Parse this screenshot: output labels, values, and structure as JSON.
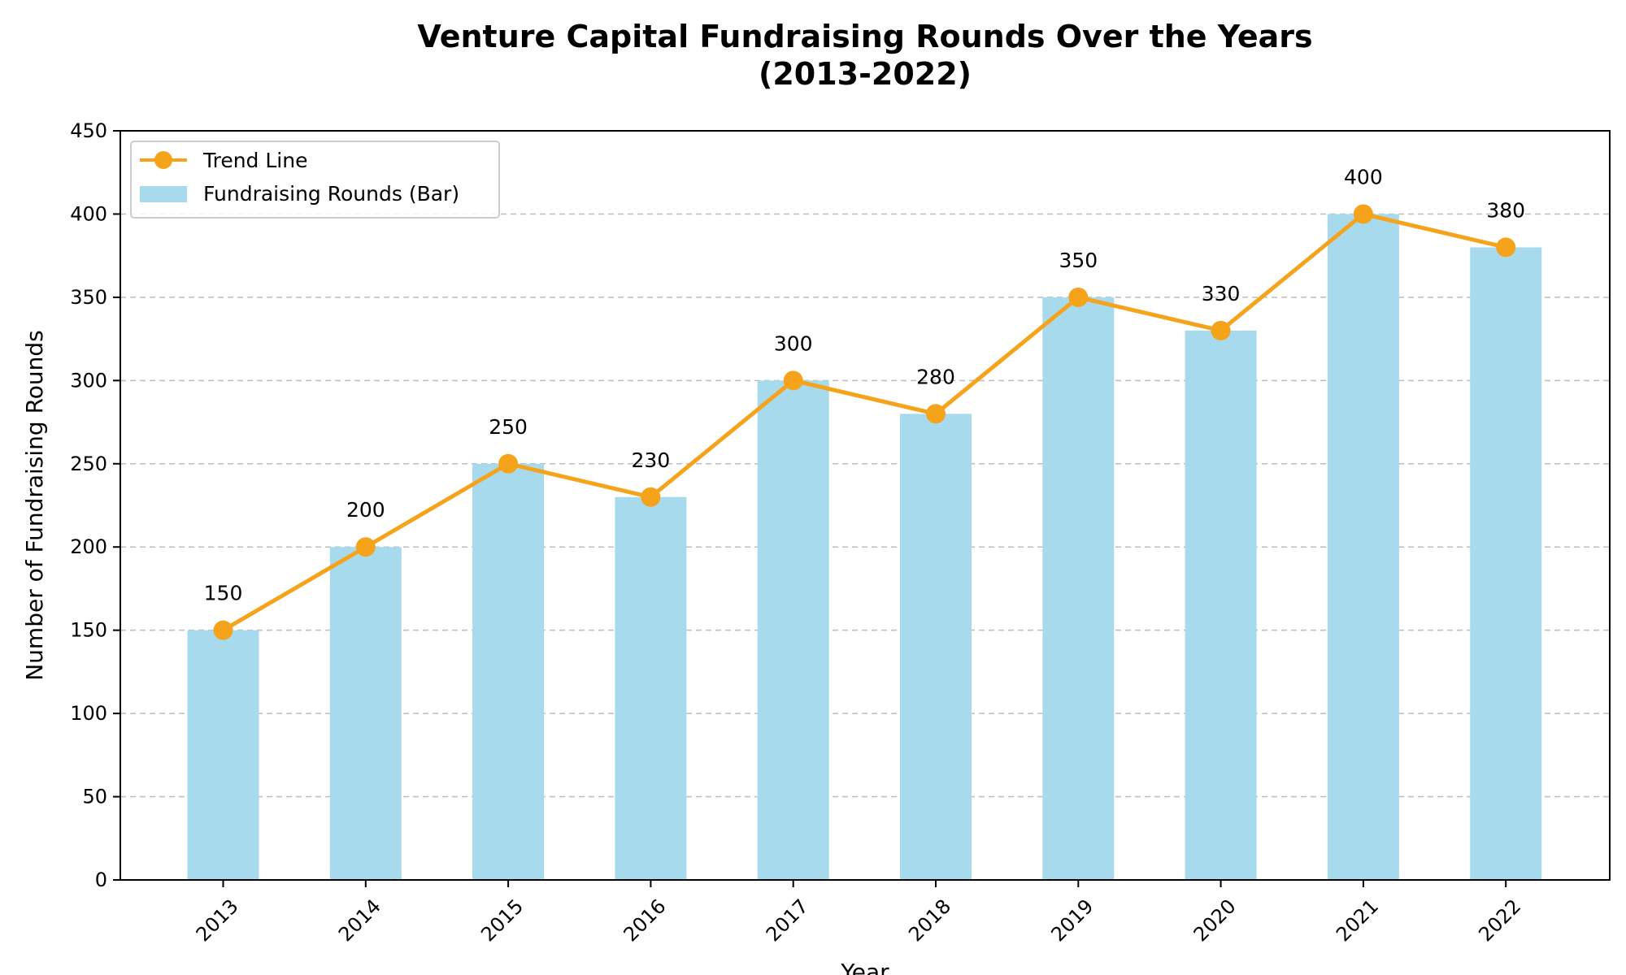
{
  "chart_data": {
    "type": "bar",
    "title_line1": "Venture Capital Fundraising Rounds Over the Years",
    "title_line2": "(2013-2022)",
    "xlabel": "Year",
    "ylabel": "Number of Fundraising Rounds",
    "categories": [
      "2013",
      "2014",
      "2015",
      "2016",
      "2017",
      "2018",
      "2019",
      "2020",
      "2021",
      "2022"
    ],
    "series": [
      {
        "name": "Fundraising Rounds (Bar)",
        "kind": "bar",
        "color": "#a8daed",
        "values": [
          150,
          200,
          250,
          230,
          300,
          280,
          350,
          330,
          400,
          380
        ]
      },
      {
        "name": "Trend Line",
        "kind": "line",
        "color": "#f5a31a",
        "values": [
          150,
          200,
          250,
          230,
          300,
          280,
          350,
          330,
          400,
          380
        ]
      }
    ],
    "data_labels": [
      "150",
      "200",
      "250",
      "230",
      "300",
      "280",
      "350",
      "330",
      "400",
      "380"
    ],
    "ylim": [
      0,
      450
    ],
    "yticks": [
      "0",
      "50",
      "100",
      "150",
      "200",
      "250",
      "300",
      "350",
      "400",
      "450"
    ],
    "grid": "horizontal dashed",
    "legend_position": "top-left",
    "legend": [
      "Trend Line",
      "Fundraising Rounds (Bar)"
    ]
  }
}
